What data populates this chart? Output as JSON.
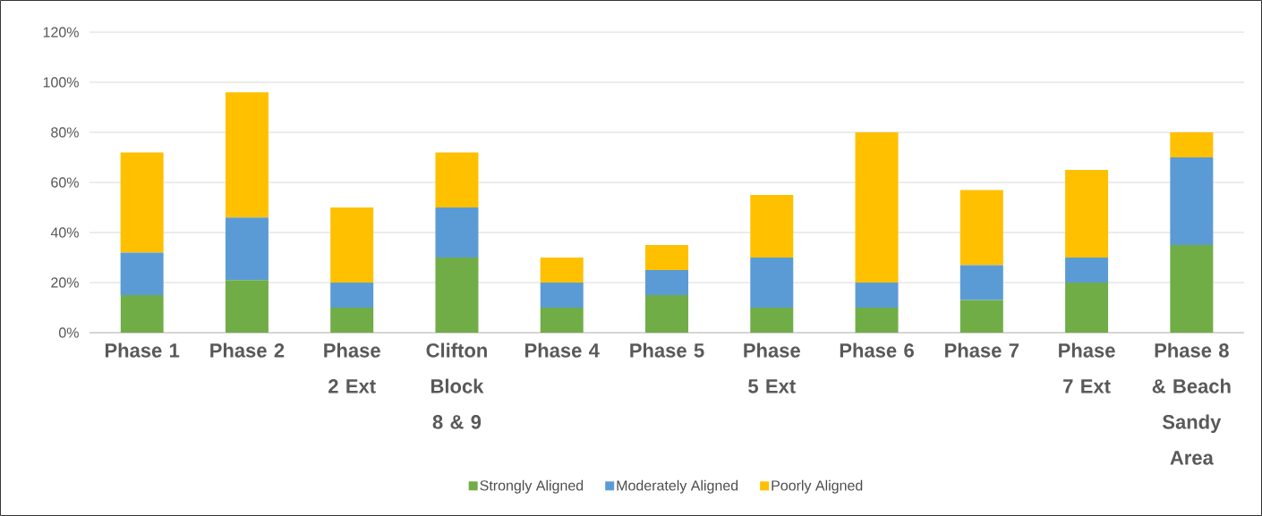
{
  "chart_data": {
    "type": "bar",
    "stacked": true,
    "categories": [
      "Phase 1",
      "Phase 2",
      "Phase 2 Ext",
      "Clifton Block 8 & 9",
      "Phase 4",
      "Phase 5",
      "Phase 5 Ext",
      "Phase 6",
      "Phase 7",
      "Phase 7 Ext",
      "Phase 8 & Beach Sandy Area"
    ],
    "series": [
      {
        "name": "Strongly Aligned",
        "color": "#70ad47",
        "values": [
          15,
          21,
          10,
          30,
          10,
          15,
          10,
          10,
          13,
          20,
          35
        ]
      },
      {
        "name": "Moderately Aligned",
        "color": "#5b9bd5",
        "values": [
          17,
          25,
          10,
          20,
          10,
          10,
          20,
          10,
          14,
          10,
          35
        ]
      },
      {
        "name": "Poorly Aligned",
        "color": "#ffc000",
        "values": [
          40,
          50,
          30,
          22,
          10,
          10,
          25,
          60,
          30,
          35,
          10
        ]
      }
    ],
    "ylim": [
      0,
      120
    ],
    "yticks": [
      {
        "value": 0,
        "label": "0%"
      },
      {
        "value": 20,
        "label": "20%"
      },
      {
        "value": 40,
        "label": "40%"
      },
      {
        "value": 60,
        "label": "60%"
      },
      {
        "value": 80,
        "label": "80%"
      },
      {
        "value": 100,
        "label": "100%"
      },
      {
        "value": 120,
        "label": "120%"
      }
    ],
    "grid": "y",
    "legend": "bottom"
  }
}
